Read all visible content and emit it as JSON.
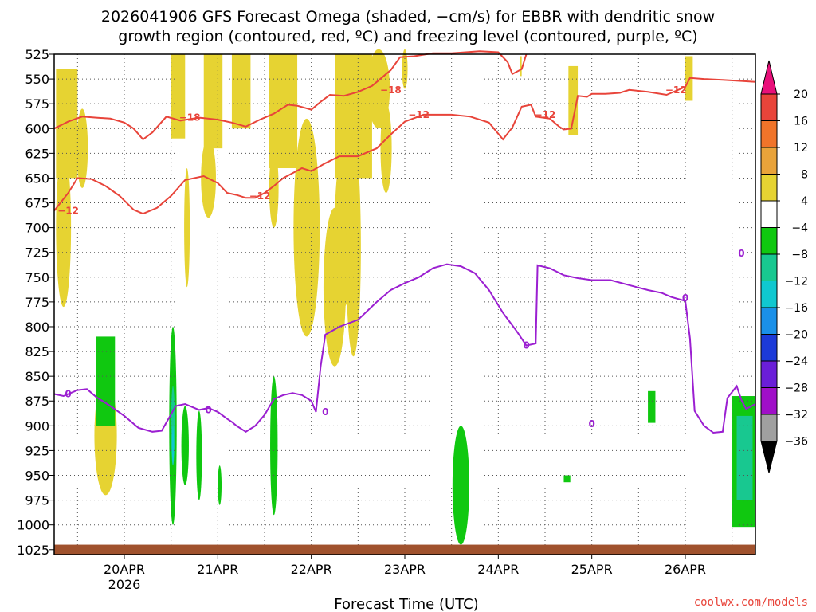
{
  "chart_data": {
    "type": "heatmap",
    "title_line1": "2026041906 GFS Forecast Omega (shaded, −cm/s) for EBBR with dendritic snow",
    "title_line2": "growth region (contoured, red, ºC) and freezing level (contoured, purple, ºC)",
    "xlabel": "Forecast Time (UTC)",
    "credit": "coolwx.com/models",
    "x_ticks": [
      "20APR",
      "21APR",
      "22APR",
      "23APR",
      "24APR",
      "25APR",
      "26APR"
    ],
    "x_sub": "2026",
    "x_range_days": [
      19.25,
      26.75
    ],
    "y_ticks": [
      525,
      550,
      575,
      600,
      625,
      650,
      675,
      700,
      725,
      750,
      775,
      800,
      825,
      850,
      875,
      900,
      925,
      950,
      975,
      1000,
      1025
    ],
    "ylim": [
      525,
      1030
    ],
    "grid": true,
    "colorbar": {
      "labels": [
        "20",
        "16",
        "12",
        "8",
        "4",
        "−4",
        "−8",
        "−12",
        "−16",
        "−20",
        "−24",
        "−28",
        "−32",
        "−36"
      ],
      "colors": [
        "#e8443a",
        "#f0742a",
        "#e9a33a",
        "#e6d332",
        "#ffffff",
        "#10c810",
        "#18c890",
        "#10c8d0",
        "#1a90e8",
        "#1c3ad8",
        "#6a1ed8",
        "#a00fc8",
        "#a0a0a0",
        "#000000"
      ],
      "top_arrow_color": "#e8107a"
    },
    "series": [
      {
        "name": "dendritic snow growth region -12",
        "color": "#e8443a",
        "label": "−12",
        "points": [
          [
            19.25,
            683
          ],
          [
            19.4,
            665
          ],
          [
            19.5,
            650
          ],
          [
            19.65,
            651
          ],
          [
            19.8,
            658
          ],
          [
            19.95,
            668
          ],
          [
            20.1,
            682
          ],
          [
            20.2,
            686
          ],
          [
            20.35,
            680
          ],
          [
            20.5,
            668
          ],
          [
            20.65,
            652
          ],
          [
            20.85,
            648
          ],
          [
            21.0,
            655
          ],
          [
            21.1,
            665
          ],
          [
            21.2,
            667
          ],
          [
            21.3,
            670
          ],
          [
            21.4,
            670
          ],
          [
            21.5,
            665
          ],
          [
            21.6,
            658
          ],
          [
            21.7,
            650
          ],
          [
            21.8,
            645
          ],
          [
            21.9,
            640
          ],
          [
            22.0,
            643
          ],
          [
            22.15,
            635
          ],
          [
            22.3,
            628
          ],
          [
            22.5,
            628
          ],
          [
            22.7,
            620
          ],
          [
            22.85,
            606
          ],
          [
            23.0,
            593
          ],
          [
            23.2,
            586
          ],
          [
            23.5,
            586
          ],
          [
            23.7,
            588
          ],
          [
            23.9,
            594
          ],
          [
            24.05,
            611
          ],
          [
            24.15,
            599
          ],
          [
            24.25,
            578
          ],
          [
            24.35,
            576
          ],
          [
            24.4,
            588
          ],
          [
            24.55,
            590
          ],
          [
            24.65,
            598
          ],
          [
            24.7,
            601
          ],
          [
            24.78,
            600
          ],
          [
            24.85,
            567
          ],
          [
            24.95,
            568
          ],
          [
            25.0,
            565
          ],
          [
            25.15,
            565
          ],
          [
            25.3,
            564
          ],
          [
            25.4,
            561
          ],
          [
            25.6,
            563
          ],
          [
            25.8,
            566
          ],
          [
            26.0,
            558
          ],
          [
            26.05,
            549
          ],
          [
            26.2,
            550
          ],
          [
            26.4,
            551
          ],
          [
            26.6,
            552
          ],
          [
            26.75,
            553
          ]
        ]
      },
      {
        "name": "dendritic snow growth region -18",
        "color": "#e8443a",
        "label": "−18",
        "points": [
          [
            19.25,
            600
          ],
          [
            19.4,
            593
          ],
          [
            19.55,
            588
          ],
          [
            19.7,
            589
          ],
          [
            19.85,
            590
          ],
          [
            20.0,
            594
          ],
          [
            20.1,
            600
          ],
          [
            20.2,
            611
          ],
          [
            20.3,
            604
          ],
          [
            20.45,
            588
          ],
          [
            20.6,
            592
          ],
          [
            20.8,
            589
          ],
          [
            21.0,
            591
          ],
          [
            21.15,
            594
          ],
          [
            21.3,
            598
          ],
          [
            21.45,
            591
          ],
          [
            21.6,
            585
          ],
          [
            21.75,
            576
          ],
          [
            21.85,
            577
          ],
          [
            22.0,
            581
          ],
          [
            22.1,
            573
          ],
          [
            22.2,
            566
          ],
          [
            22.35,
            567
          ],
          [
            22.5,
            563
          ],
          [
            22.65,
            557
          ],
          [
            22.75,
            549
          ],
          [
            22.85,
            541
          ],
          [
            22.95,
            528
          ],
          [
            23.1,
            527
          ],
          [
            23.3,
            524
          ],
          [
            23.5,
            524
          ],
          [
            23.8,
            522
          ],
          [
            24.0,
            523
          ],
          [
            24.1,
            533
          ],
          [
            24.15,
            545
          ],
          [
            24.25,
            540
          ],
          [
            24.3,
            525
          ]
        ]
      },
      {
        "name": "freezing level 0",
        "color": "#9b1fd1",
        "label": "0",
        "points": [
          [
            19.25,
            868
          ],
          [
            19.35,
            870
          ],
          [
            19.5,
            864
          ],
          [
            19.6,
            863
          ],
          [
            19.7,
            871
          ],
          [
            19.85,
            880
          ],
          [
            20.0,
            890
          ],
          [
            20.15,
            902
          ],
          [
            20.3,
            906
          ],
          [
            20.4,
            905
          ],
          [
            20.55,
            880
          ],
          [
            20.65,
            878
          ],
          [
            20.8,
            884
          ],
          [
            20.9,
            882
          ],
          [
            21.0,
            886
          ],
          [
            21.1,
            893
          ],
          [
            21.15,
            896
          ],
          [
            21.2,
            900
          ],
          [
            21.3,
            906
          ],
          [
            21.4,
            900
          ],
          [
            21.5,
            889
          ],
          [
            21.6,
            873
          ],
          [
            21.7,
            869
          ],
          [
            21.8,
            867
          ],
          [
            21.9,
            869
          ],
          [
            22.0,
            875
          ],
          [
            22.05,
            886
          ],
          [
            22.1,
            840
          ],
          [
            22.15,
            808
          ],
          [
            22.3,
            800
          ],
          [
            22.5,
            793
          ],
          [
            22.7,
            775
          ],
          [
            22.85,
            763
          ],
          [
            23.0,
            756
          ],
          [
            23.15,
            750
          ],
          [
            23.3,
            741
          ],
          [
            23.45,
            737
          ],
          [
            23.6,
            739
          ],
          [
            23.75,
            746
          ],
          [
            23.9,
            763
          ],
          [
            24.05,
            786
          ],
          [
            24.2,
            805
          ],
          [
            24.3,
            819
          ],
          [
            24.4,
            817
          ],
          [
            24.42,
            738
          ],
          [
            24.55,
            741
          ],
          [
            24.7,
            748
          ],
          [
            24.85,
            751
          ],
          [
            25.0,
            753
          ],
          [
            25.2,
            753
          ],
          [
            25.4,
            758
          ],
          [
            25.6,
            763
          ],
          [
            25.75,
            766
          ],
          [
            25.85,
            770
          ],
          [
            26.0,
            774
          ],
          [
            26.05,
            812
          ],
          [
            26.1,
            885
          ],
          [
            26.2,
            900
          ],
          [
            26.3,
            907
          ],
          [
            26.4,
            906
          ],
          [
            26.45,
            872
          ],
          [
            26.55,
            860
          ],
          [
            26.6,
            874
          ],
          [
            26.65,
            883
          ],
          [
            26.75,
            878
          ]
        ]
      }
    ],
    "shaded_regions": [
      {
        "level": "4",
        "color": "#e6d332",
        "note": "upward motion 4-8"
      },
      {
        "level": "8",
        "color": "#e9a33a",
        "note": "upward motion 8-12"
      },
      {
        "level": "-4",
        "color": "#10c810",
        "note": "downward motion -4 to -8"
      },
      {
        "level": "-8",
        "color": "#18c890",
        "note": "downward motion -8 to -12"
      },
      {
        "level": "-12",
        "color": "#10c8d0",
        "note": "downward motion -12 to -16"
      }
    ],
    "terrain_color": "#a0522d"
  }
}
